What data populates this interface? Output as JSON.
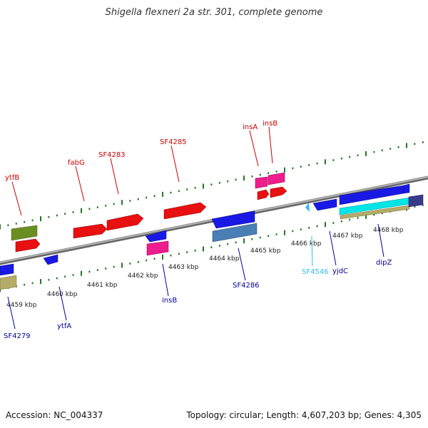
{
  "title": "Shigella flexneri 2a str. 301, complete genome",
  "footer": {
    "accession": "Accession: NC_004337",
    "topology": "Topology: circular; Length: 4,607,203 bp; Genes: 4,305"
  },
  "colors": {
    "forward_label": "#cc0000",
    "reverse_label": "#000099",
    "special_label": "#33bbee",
    "axis": "#888888",
    "tick": "#227722"
  },
  "scale": {
    "tick_labels": [
      "4459 kbp",
      "4460 kbp",
      "4461 kbp",
      "4462 kbp",
      "4463 kbp",
      "4464 kbp",
      "4465 kbp",
      "4466 kbp",
      "4467 kbp",
      "4468 kbp"
    ]
  },
  "gene_labels": {
    "forward": [
      "ytfB",
      "fabG",
      "SF4283",
      "SF4285",
      "insA",
      "insB"
    ],
    "reverse": [
      "SF4279",
      "ytfA",
      "insB",
      "SF4286",
      "SF4546",
      "yjdC",
      "dipZ"
    ]
  }
}
